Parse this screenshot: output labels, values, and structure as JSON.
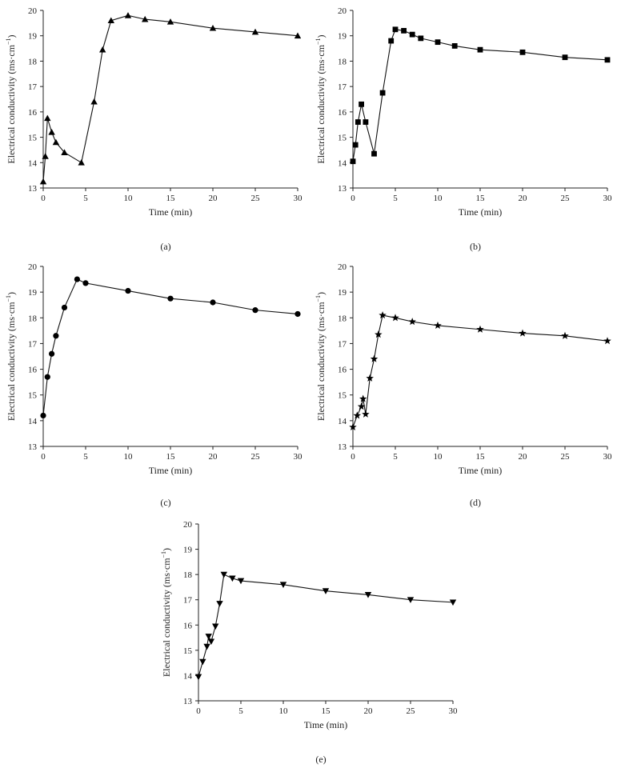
{
  "chart_data": [
    {
      "type": "line",
      "panel_label": "(a)",
      "marker": "triangle-up",
      "xlabel": "Time (min)",
      "ylabel": "Electrical conductivity (ms·cm",
      "ylabel_sup": "−1",
      "ylabel_close": ")",
      "xlim": [
        0,
        30
      ],
      "ylim": [
        13,
        20
      ],
      "x_ticks": [
        0,
        5,
        10,
        15,
        20,
        25,
        30
      ],
      "y_ticks": [
        13,
        14,
        15,
        16,
        17,
        18,
        19,
        20
      ],
      "grid": false,
      "series": [
        {
          "x": [
            0,
            0.25,
            0.5,
            1,
            1.5,
            2.5,
            4.5,
            6,
            7,
            8,
            10,
            12,
            15,
            20,
            25,
            30
          ],
          "y": [
            13.25,
            14.25,
            15.75,
            15.2,
            14.8,
            14.4,
            14.0,
            16.4,
            18.45,
            19.6,
            19.8,
            19.65,
            19.55,
            19.3,
            19.15,
            19.0
          ]
        }
      ]
    },
    {
      "type": "line",
      "panel_label": "(b)",
      "marker": "square",
      "xlabel": "Time (min)",
      "ylabel": "Electrical conductivity (ms·cm",
      "ylabel_sup": "−1",
      "ylabel_close": ")",
      "xlim": [
        0,
        30
      ],
      "ylim": [
        13,
        20
      ],
      "x_ticks": [
        0,
        5,
        10,
        15,
        20,
        25,
        30
      ],
      "y_ticks": [
        13,
        14,
        15,
        16,
        17,
        18,
        19,
        20
      ],
      "grid": false,
      "series": [
        {
          "x": [
            0,
            0.3,
            0.6,
            1,
            1.5,
            2.5,
            3.5,
            4.5,
            5,
            6,
            7,
            8,
            10,
            12,
            15,
            20,
            25,
            30
          ],
          "y": [
            14.05,
            14.7,
            15.6,
            16.3,
            15.6,
            14.35,
            16.75,
            18.8,
            19.25,
            19.2,
            19.05,
            18.9,
            18.75,
            18.6,
            18.45,
            18.35,
            18.15,
            18.05
          ]
        }
      ]
    },
    {
      "type": "line",
      "panel_label": "(c)",
      "marker": "circle",
      "xlabel": "Time (min)",
      "ylabel": "Electrical conductivity (ms·cm",
      "ylabel_sup": "−1",
      "ylabel_close": ")",
      "xlim": [
        0,
        30
      ],
      "ylim": [
        13,
        20
      ],
      "x_ticks": [
        0,
        5,
        10,
        15,
        20,
        25,
        30
      ],
      "y_ticks": [
        13,
        14,
        15,
        16,
        17,
        18,
        19,
        20
      ],
      "grid": false,
      "series": [
        {
          "x": [
            0,
            0.5,
            1,
            1.5,
            2.5,
            4,
            5,
            10,
            15,
            20,
            25,
            30
          ],
          "y": [
            14.2,
            15.7,
            16.6,
            17.3,
            18.4,
            19.5,
            19.35,
            19.05,
            18.75,
            18.6,
            18.3,
            18.15
          ]
        }
      ]
    },
    {
      "type": "line",
      "panel_label": "(d)",
      "marker": "star",
      "xlabel": "Time (min)",
      "ylabel": "Electrical conductivity (ms·cm",
      "ylabel_sup": "−1",
      "ylabel_close": ")",
      "xlim": [
        0,
        30
      ],
      "ylim": [
        13,
        20
      ],
      "x_ticks": [
        0,
        5,
        10,
        15,
        20,
        25,
        30
      ],
      "y_ticks": [
        13,
        14,
        15,
        16,
        17,
        18,
        19,
        20
      ],
      "grid": false,
      "series": [
        {
          "x": [
            0,
            0.5,
            1,
            1.2,
            1.5,
            2,
            2.5,
            3,
            3.5,
            5,
            7,
            10,
            15,
            20,
            25,
            30
          ],
          "y": [
            13.75,
            14.2,
            14.55,
            14.85,
            14.25,
            15.65,
            16.4,
            17.35,
            18.1,
            18.0,
            17.85,
            17.7,
            17.55,
            17.4,
            17.3,
            17.1
          ]
        }
      ]
    },
    {
      "type": "line",
      "panel_label": "(e)",
      "marker": "triangle-down",
      "xlabel": "Time (min)",
      "ylabel": "Electrical conductivity (ms·cm",
      "ylabel_sup": "−1",
      "ylabel_close": ")",
      "xlim": [
        0,
        30
      ],
      "ylim": [
        13,
        20
      ],
      "x_ticks": [
        0,
        5,
        10,
        15,
        20,
        25,
        30
      ],
      "y_ticks": [
        13,
        14,
        15,
        16,
        17,
        18,
        19,
        20
      ],
      "grid": false,
      "series": [
        {
          "x": [
            0,
            0.5,
            1,
            1.2,
            1.5,
            2,
            2.5,
            3,
            4,
            5,
            10,
            15,
            20,
            25,
            30
          ],
          "y": [
            13.95,
            14.55,
            15.15,
            15.55,
            15.35,
            15.95,
            16.85,
            18.0,
            17.85,
            17.75,
            17.6,
            17.35,
            17.2,
            17.0,
            16.9
          ]
        }
      ]
    }
  ]
}
